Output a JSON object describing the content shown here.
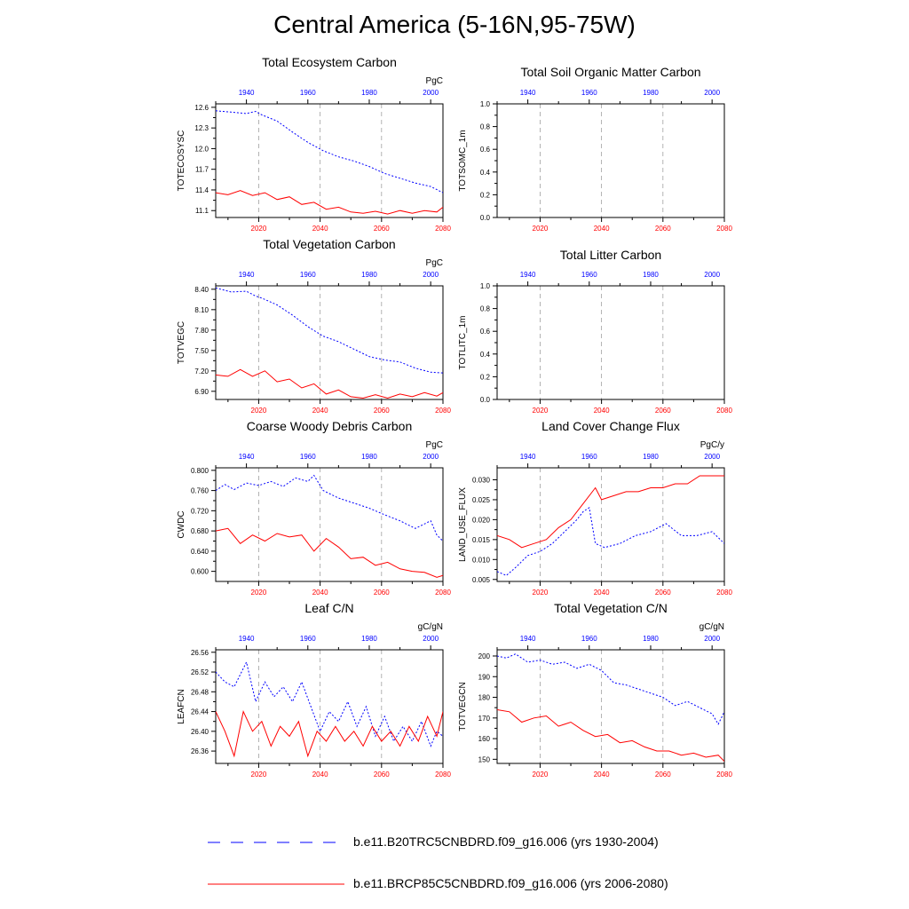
{
  "page": {
    "title": "Central America (5-16N,95-75W)"
  },
  "axes_common": {
    "bottom_ticks": [
      2020,
      2040,
      2060,
      2080
    ],
    "top_ticks": [
      1940,
      1960,
      1980,
      2000
    ],
    "bottom_range": [
      2006,
      2080
    ],
    "top_range": [
      1930,
      2004
    ],
    "bottom_color": "#ff0000",
    "top_color": "#0000ff"
  },
  "legend": {
    "hist_label": "b.e11.B20TRC5CNBDRD.f09_g16.006 (yrs 1930-2004)",
    "rcp_label": "b.e11.BRCP85C5CNBDRD.f09_g16.006 (yrs 2006-2080)"
  },
  "chart_data": [
    {
      "type": "line",
      "title": "Total Ecosystem Carbon",
      "ylabel": "TOTECOSYSC",
      "units": "PgC",
      "ylim": [
        11.0,
        12.65
      ],
      "yticks": [
        11.1,
        11.4,
        11.7,
        12.0,
        12.3,
        12.6
      ],
      "ytick_labels": [
        "11.1",
        "11.4",
        "11.7",
        "12.0",
        "12.3",
        "12.6"
      ],
      "series": [
        {
          "name": "b.e11.B20TRC5CNBDRD.f09_g16.006 (yrs 1930-2004)",
          "axis": "top",
          "style": "dotted",
          "color": "#0000ff",
          "x": [
            1930,
            1935,
            1940,
            1943,
            1945,
            1950,
            1955,
            1960,
            1965,
            1970,
            1975,
            1980,
            1985,
            1990,
            1995,
            2000,
            2004
          ],
          "y": [
            12.55,
            12.53,
            12.51,
            12.54,
            12.49,
            12.4,
            12.24,
            12.09,
            11.97,
            11.88,
            11.82,
            11.74,
            11.64,
            11.57,
            11.5,
            11.45,
            11.36
          ]
        },
        {
          "name": "b.e11.BRCP85C5CNBDRD.f09_g16.006 (yrs 2006-2080)",
          "axis": "bottom",
          "style": "solid",
          "color": "#ff0000",
          "x": [
            2006,
            2010,
            2014,
            2018,
            2022,
            2026,
            2030,
            2034,
            2038,
            2042,
            2046,
            2050,
            2054,
            2058,
            2062,
            2066,
            2070,
            2074,
            2078,
            2080
          ],
          "y": [
            11.36,
            11.33,
            11.39,
            11.32,
            11.36,
            11.26,
            11.3,
            11.19,
            11.22,
            11.12,
            11.15,
            11.08,
            11.06,
            11.09,
            11.05,
            11.1,
            11.06,
            11.1,
            11.08,
            11.15
          ]
        }
      ]
    },
    {
      "type": "line",
      "title": "Total Soil Organic Matter Carbon",
      "ylabel": "TOTSOMC_1m",
      "units": "",
      "ylim": [
        0.0,
        1.0
      ],
      "yticks": [
        0.0,
        0.2,
        0.4,
        0.6,
        0.8,
        1.0
      ],
      "ytick_labels": [
        "0.0",
        "0.2",
        "0.4",
        "0.6",
        "0.8",
        "1.0"
      ],
      "series": []
    },
    {
      "type": "line",
      "title": "Total Vegetation Carbon",
      "ylabel": "TOTVEGC",
      "units": "PgC",
      "ylim": [
        6.78,
        8.45
      ],
      "yticks": [
        6.9,
        7.2,
        7.5,
        7.8,
        8.1,
        8.4
      ],
      "ytick_labels": [
        "6.90",
        "7.20",
        "7.50",
        "7.80",
        "8.10",
        "8.40"
      ],
      "series": [
        {
          "name": "b.e11.B20TRC5CNBDRD.f09_g16.006 (yrs 1930-2004)",
          "axis": "top",
          "style": "dotted",
          "color": "#0000ff",
          "x": [
            1930,
            1935,
            1940,
            1943,
            1945,
            1950,
            1955,
            1960,
            1965,
            1970,
            1975,
            1980,
            1985,
            1990,
            1995,
            2000,
            2004
          ],
          "y": [
            8.42,
            8.36,
            8.37,
            8.3,
            8.27,
            8.17,
            8.02,
            7.85,
            7.71,
            7.63,
            7.52,
            7.41,
            7.36,
            7.33,
            7.24,
            7.18,
            7.17
          ]
        },
        {
          "name": "b.e11.BRCP85C5CNBDRD.f09_g16.006 (yrs 2006-2080)",
          "axis": "bottom",
          "style": "solid",
          "color": "#ff0000",
          "x": [
            2006,
            2010,
            2014,
            2018,
            2022,
            2026,
            2030,
            2034,
            2038,
            2042,
            2046,
            2050,
            2054,
            2058,
            2062,
            2066,
            2070,
            2074,
            2078,
            2080
          ],
          "y": [
            7.14,
            7.12,
            7.22,
            7.12,
            7.2,
            7.04,
            7.08,
            6.95,
            7.01,
            6.86,
            6.92,
            6.82,
            6.8,
            6.85,
            6.8,
            6.86,
            6.82,
            6.88,
            6.83,
            6.88
          ]
        }
      ]
    },
    {
      "type": "line",
      "title": "Total Litter Carbon",
      "ylabel": "TOTLITC_1m",
      "units": "",
      "ylim": [
        0.0,
        1.0
      ],
      "yticks": [
        0.0,
        0.2,
        0.4,
        0.6,
        0.8,
        1.0
      ],
      "ytick_labels": [
        "0.0",
        "0.2",
        "0.4",
        "0.6",
        "0.8",
        "1.0"
      ],
      "series": []
    },
    {
      "type": "line",
      "title": "Coarse Woody Debris Carbon",
      "ylabel": "CWDC",
      "units": "PgC",
      "ylim": [
        0.58,
        0.805
      ],
      "yticks": [
        0.6,
        0.64,
        0.68,
        0.72,
        0.76,
        0.8
      ],
      "ytick_labels": [
        "0.600",
        "0.640",
        "0.680",
        "0.720",
        "0.760",
        "0.800"
      ],
      "series": [
        {
          "name": "b.e11.B20TRC5CNBDRD.f09_g16.006 (yrs 1930-2004)",
          "axis": "top",
          "style": "dotted",
          "color": "#0000ff",
          "x": [
            1930,
            1933,
            1936,
            1940,
            1944,
            1948,
            1952,
            1956,
            1960,
            1962,
            1965,
            1970,
            1975,
            1980,
            1985,
            1990,
            1995,
            2000,
            2002,
            2004
          ],
          "y": [
            0.76,
            0.772,
            0.762,
            0.775,
            0.77,
            0.778,
            0.768,
            0.785,
            0.778,
            0.79,
            0.76,
            0.745,
            0.735,
            0.725,
            0.712,
            0.7,
            0.685,
            0.7,
            0.672,
            0.66
          ]
        },
        {
          "name": "b.e11.BRCP85C5CNBDRD.f09_g16.006 (yrs 2006-2080)",
          "axis": "bottom",
          "style": "solid",
          "color": "#ff0000",
          "x": [
            2006,
            2010,
            2014,
            2018,
            2022,
            2026,
            2030,
            2034,
            2038,
            2042,
            2046,
            2050,
            2054,
            2058,
            2062,
            2066,
            2070,
            2074,
            2078,
            2080
          ],
          "y": [
            0.68,
            0.685,
            0.655,
            0.672,
            0.66,
            0.675,
            0.668,
            0.672,
            0.64,
            0.665,
            0.648,
            0.625,
            0.628,
            0.612,
            0.618,
            0.605,
            0.6,
            0.598,
            0.588,
            0.592
          ]
        }
      ]
    },
    {
      "type": "line",
      "title": "Land Cover Change Flux",
      "ylabel": "LAND_USE_FLUX",
      "units": "PgC/y",
      "ylim": [
        0.0045,
        0.033
      ],
      "yticks": [
        0.005,
        0.01,
        0.015,
        0.02,
        0.025,
        0.03
      ],
      "ytick_labels": [
        "0.005",
        "0.010",
        "0.015",
        "0.020",
        "0.025",
        "0.030"
      ],
      "series": [
        {
          "name": "b.e11.B20TRC5CNBDRD.f09_g16.006 (yrs 1930-2004)",
          "axis": "top",
          "style": "dotted",
          "color": "#0000ff",
          "x": [
            1930,
            1933,
            1936,
            1940,
            1944,
            1948,
            1952,
            1956,
            1958,
            1960,
            1962,
            1965,
            1970,
            1975,
            1980,
            1985,
            1990,
            1995,
            2000,
            2004
          ],
          "y": [
            0.007,
            0.006,
            0.008,
            0.011,
            0.012,
            0.014,
            0.017,
            0.02,
            0.022,
            0.023,
            0.014,
            0.013,
            0.014,
            0.016,
            0.017,
            0.019,
            0.016,
            0.016,
            0.017,
            0.014
          ]
        },
        {
          "name": "b.e11.BRCP85C5CNBDRD.f09_g16.006 (yrs 2006-2080)",
          "axis": "bottom",
          "style": "solid",
          "color": "#ff0000",
          "x": [
            2006,
            2010,
            2014,
            2018,
            2022,
            2026,
            2030,
            2034,
            2038,
            2040,
            2044,
            2048,
            2052,
            2056,
            2060,
            2064,
            2068,
            2072,
            2076,
            2080
          ],
          "y": [
            0.016,
            0.015,
            0.013,
            0.014,
            0.015,
            0.018,
            0.02,
            0.024,
            0.028,
            0.025,
            0.026,
            0.027,
            0.027,
            0.028,
            0.028,
            0.029,
            0.029,
            0.031,
            0.031,
            0.031
          ]
        }
      ]
    },
    {
      "type": "line",
      "title": "Leaf C/N",
      "ylabel": "LEAFCN",
      "units": "gC/gN",
      "ylim": [
        26.335,
        26.565
      ],
      "yticks": [
        26.36,
        26.4,
        26.44,
        26.48,
        26.52,
        26.56
      ],
      "ytick_labels": [
        "26.36",
        "26.40",
        "26.44",
        "26.48",
        "26.52",
        "26.56"
      ],
      "series": [
        {
          "name": "b.e11.B20TRC5CNBDRD.f09_g16.006 (yrs 1930-2004)",
          "axis": "top",
          "style": "dotted",
          "color": "#0000ff",
          "x": [
            1930,
            1933,
            1936,
            1940,
            1943,
            1946,
            1949,
            1952,
            1955,
            1958,
            1961,
            1964,
            1967,
            1970,
            1973,
            1976,
            1979,
            1982,
            1985,
            1988,
            1991,
            1994,
            1997,
            2000,
            2002,
            2004
          ],
          "y": [
            26.52,
            26.5,
            26.49,
            26.54,
            26.46,
            26.5,
            26.47,
            26.49,
            26.46,
            26.5,
            26.45,
            26.4,
            26.44,
            26.42,
            26.46,
            26.41,
            26.45,
            26.39,
            26.43,
            26.38,
            26.41,
            26.38,
            26.42,
            26.37,
            26.4,
            26.39
          ]
        },
        {
          "name": "b.e11.BRCP85C5CNBDRD.f09_g16.006 (yrs 2006-2080)",
          "axis": "bottom",
          "style": "solid",
          "color": "#ff0000",
          "x": [
            2006,
            2009,
            2012,
            2015,
            2018,
            2021,
            2024,
            2027,
            2030,
            2033,
            2036,
            2039,
            2042,
            2045,
            2048,
            2051,
            2054,
            2057,
            2060,
            2063,
            2066,
            2069,
            2072,
            2075,
            2078,
            2080
          ],
          "y": [
            26.44,
            26.4,
            26.35,
            26.44,
            26.4,
            26.42,
            26.37,
            26.41,
            26.39,
            26.42,
            26.35,
            26.4,
            26.38,
            26.41,
            26.38,
            26.4,
            26.37,
            26.41,
            26.38,
            26.4,
            26.37,
            26.41,
            26.38,
            26.43,
            26.39,
            26.44
          ]
        }
      ]
    },
    {
      "type": "line",
      "title": "Total Vegetation C/N",
      "ylabel": "TOTVEGCN",
      "units": "gC/gN",
      "ylim": [
        148.0,
        203.0
      ],
      "yticks": [
        150,
        160,
        170,
        180,
        190,
        200
      ],
      "ytick_labels": [
        "150",
        "160",
        "170",
        "180",
        "190",
        "200"
      ],
      "series": [
        {
          "name": "b.e11.B20TRC5CNBDRD.f09_g16.006 (yrs 1930-2004)",
          "axis": "top",
          "style": "dotted",
          "color": "#0000ff",
          "x": [
            1930,
            1933,
            1936,
            1940,
            1944,
            1948,
            1952,
            1956,
            1960,
            1964,
            1968,
            1972,
            1976,
            1980,
            1984,
            1988,
            1992,
            1996,
            2000,
            2002,
            2004
          ],
          "y": [
            200,
            199,
            201,
            197,
            198,
            196,
            197,
            194,
            196,
            193,
            187,
            186,
            184,
            182,
            180,
            176,
            178,
            175,
            172,
            167,
            173
          ]
        },
        {
          "name": "b.e11.BRCP85C5CNBDRD.f09_g16.006 (yrs 2006-2080)",
          "axis": "bottom",
          "style": "solid",
          "color": "#ff0000",
          "x": [
            2006,
            2010,
            2014,
            2018,
            2022,
            2026,
            2030,
            2034,
            2038,
            2042,
            2046,
            2050,
            2054,
            2058,
            2062,
            2066,
            2070,
            2074,
            2078,
            2080
          ],
          "y": [
            174,
            173,
            168,
            170,
            171,
            166,
            168,
            164,
            161,
            162,
            158,
            159,
            156,
            154,
            154,
            152,
            153,
            151,
            152,
            149
          ]
        }
      ]
    }
  ]
}
